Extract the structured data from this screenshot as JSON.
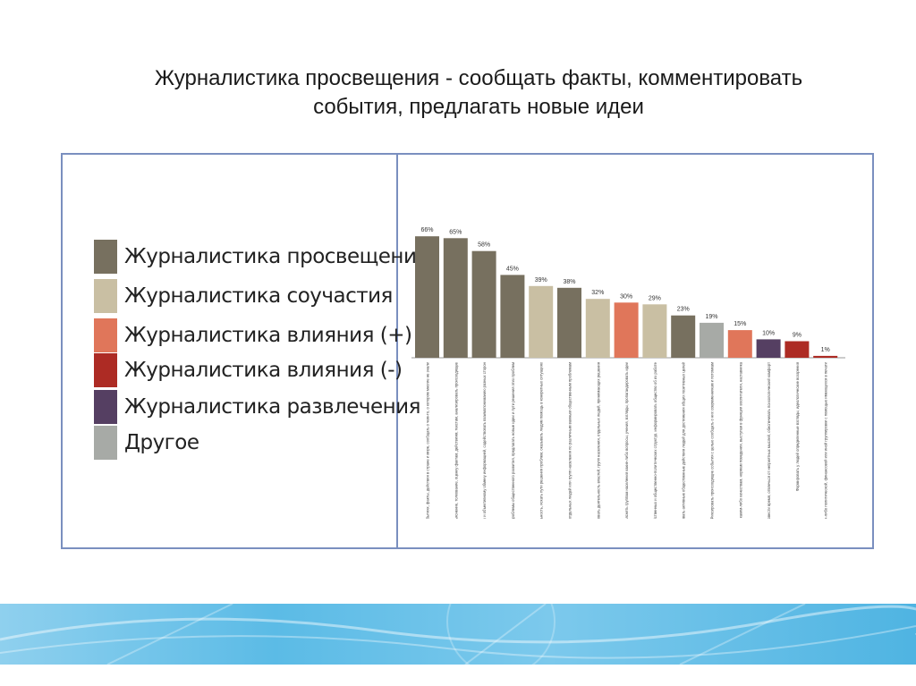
{
  "slide": {
    "title_line1": "Журналистика просвещения - сообщать факты, комментировать",
    "title_line2": "события, предлагать новые идеи"
  },
  "legend": [
    {
      "label": "Журналистика просвещения",
      "color": "#77705f"
    },
    {
      "label": "Журналистика соучастия",
      "color": "#c9bfa3"
    },
    {
      "label": "Журналистика влияния (+)",
      "color": "#e0765a"
    },
    {
      "label": "Журналистика влияния (-)",
      "color": "#ad2b24"
    },
    {
      "label": "Журналистика развлечения",
      "color": "#553f62"
    },
    {
      "label": "Другое",
      "color": "#a7aaa6"
    }
  ],
  "chart_data": {
    "type": "bar",
    "ylim": [
      0,
      70
    ],
    "series_colors": {
      "prosveshcheniya": "#77705f",
      "souchastiya": "#c9bfa3",
      "vliyaniya_plus": "#e0765a",
      "vliyaniya_minus": "#ad2b24",
      "razvlecheniya": "#553f62",
      "drugoe": "#a7aaa6"
    },
    "bars": [
      {
        "value": 66,
        "label": "66%",
        "group": "prosveshcheniya",
        "category": "Сообщать факты, информировать общество о важных событиях, факты, действия в стране и мире, сообщать о чем-то, о котором многие не знали"
      },
      {
        "value": 65,
        "label": "65%",
        "group": "prosveshcheniya",
        "category": "Комментировать события, давать объяснение, толкование, оценку фактам, действиям, текстам, анализировать происходящее"
      },
      {
        "value": 58,
        "label": "58%",
        "group": "prosveshcheniya",
        "category": "Способствовать всестороннему и объективному обмену информацией, содействовать взаимопониманию разных сторон"
      },
      {
        "value": 45,
        "label": "45%",
        "group": "prosveshcheniya",
        "category": "Определять ключевые проблемы общественного развития, предлагать новые идеи и пути решения этих проблем"
      },
      {
        "value": 39,
        "label": "39%",
        "group": "souchastiya",
        "category": "Осуществлять правозащитную деятельность, искать пути решения проблем, оказывать людям помощь в конкретных ситуациях"
      },
      {
        "value": 38,
        "label": "38%",
        "group": "prosveshcheniya",
        "category": "Выступать в роли трансляторов мнений отдельных людей или групп населения по различным важным общественным проблемам"
      },
      {
        "value": 32,
        "label": "32%",
        "group": "souchastiya",
        "category": "Осуществлять контроль и критиковать деятельность властей, групп населения, отдельных людей, принимающих решения"
      },
      {
        "value": 30,
        "label": "30%",
        "group": "vliyaniya_plus",
        "category": "Разъяснять группам населения какие-либо вопросы, учения, взгляды, пропагандировать идеи"
      },
      {
        "value": 29,
        "label": "29%",
        "group": "souchastiya",
        "category": "Следить за действиями хозяйственных и общественно-политических структур, информировать общество об их работе"
      },
      {
        "value": 23,
        "label": "23%",
        "group": "prosveshcheniya",
        "category": "Побуждать и организовывать активные общественные действия людей для достижения общих позитивных целей"
      },
      {
        "value": 19,
        "label": "19%",
        "group": "drugoe",
        "category": "Фиксировать происходящие события с целью сообщать о них современникам и потомкам"
      },
      {
        "value": 15,
        "label": "15%",
        "group": "vliyaniya_plus",
        "category": "Побуждать людей к каким-либо качествам, нормам поведения, выступая в функции воспитателя, наставника"
      },
      {
        "value": 10,
        "label": "10%",
        "group": "razvlecheniya",
        "category": "Давать возможность весело и приятно провести время, отвлечься от неприятных мыслей, обеспечивать психологический комфорт"
      },
      {
        "value": 9,
        "label": "9%",
        "group": "vliyaniya_minus",
        "category": "Формировать у людей определенные взгляды, идеологические воззрения"
      },
      {
        "value": 1,
        "label": "1%",
        "group": "vliyaniya_minus",
        "category": "Продвигать интересы каких-либо политической, финансовой или иной группировки с помощью имеющихся в печати"
      }
    ]
  }
}
